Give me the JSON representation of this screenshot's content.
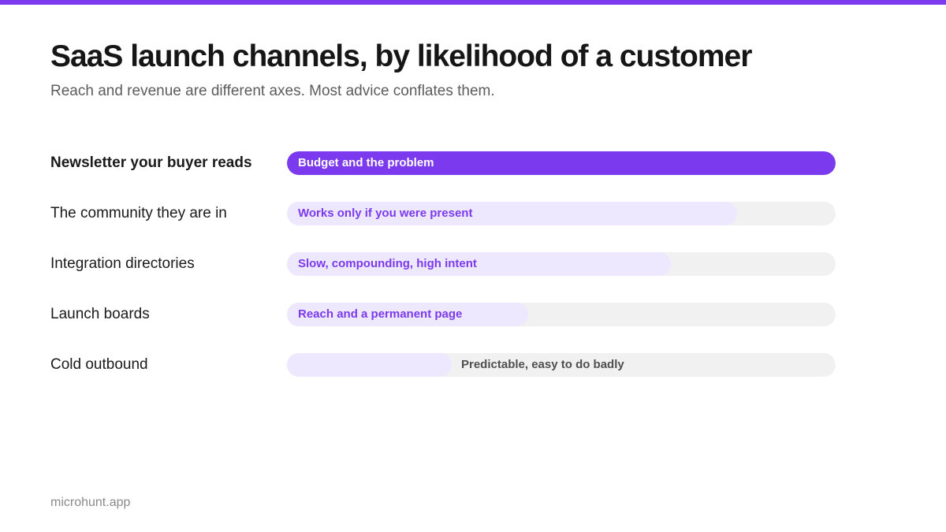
{
  "header": {
    "title": "SaaS launch channels, by likelihood of a customer",
    "subtitle": "Reach and revenue are different axes. Most advice conflates them."
  },
  "footer": {
    "site": "microhunt.app"
  },
  "colors": {
    "accent": "#7b3aed",
    "fill_light": "#ede8fe",
    "track": "#f1f1f1",
    "text_on_accent": "#ffffff",
    "text_accent": "#7b3aed",
    "text_muted": "#4f4f4f"
  },
  "chart_data": {
    "type": "bar",
    "orientation": "horizontal",
    "title": "SaaS launch channels, by likelihood of a customer",
    "subtitle": "Reach and revenue are different axes. Most advice conflates them.",
    "xlabel": "",
    "ylabel": "",
    "xlim": [
      0,
      100
    ],
    "grid": false,
    "categories": [
      "Newsletter your buyer reads",
      "The community they are in",
      "Integration directories",
      "Launch boards",
      "Cold outbound"
    ],
    "values": [
      100,
      82,
      70,
      44,
      30
    ],
    "annotations": [
      "Budget and the problem",
      "Works only if you were present",
      "Slow, compounding, high intent",
      "Reach and a permanent page",
      "Predictable, easy to do badly"
    ]
  }
}
